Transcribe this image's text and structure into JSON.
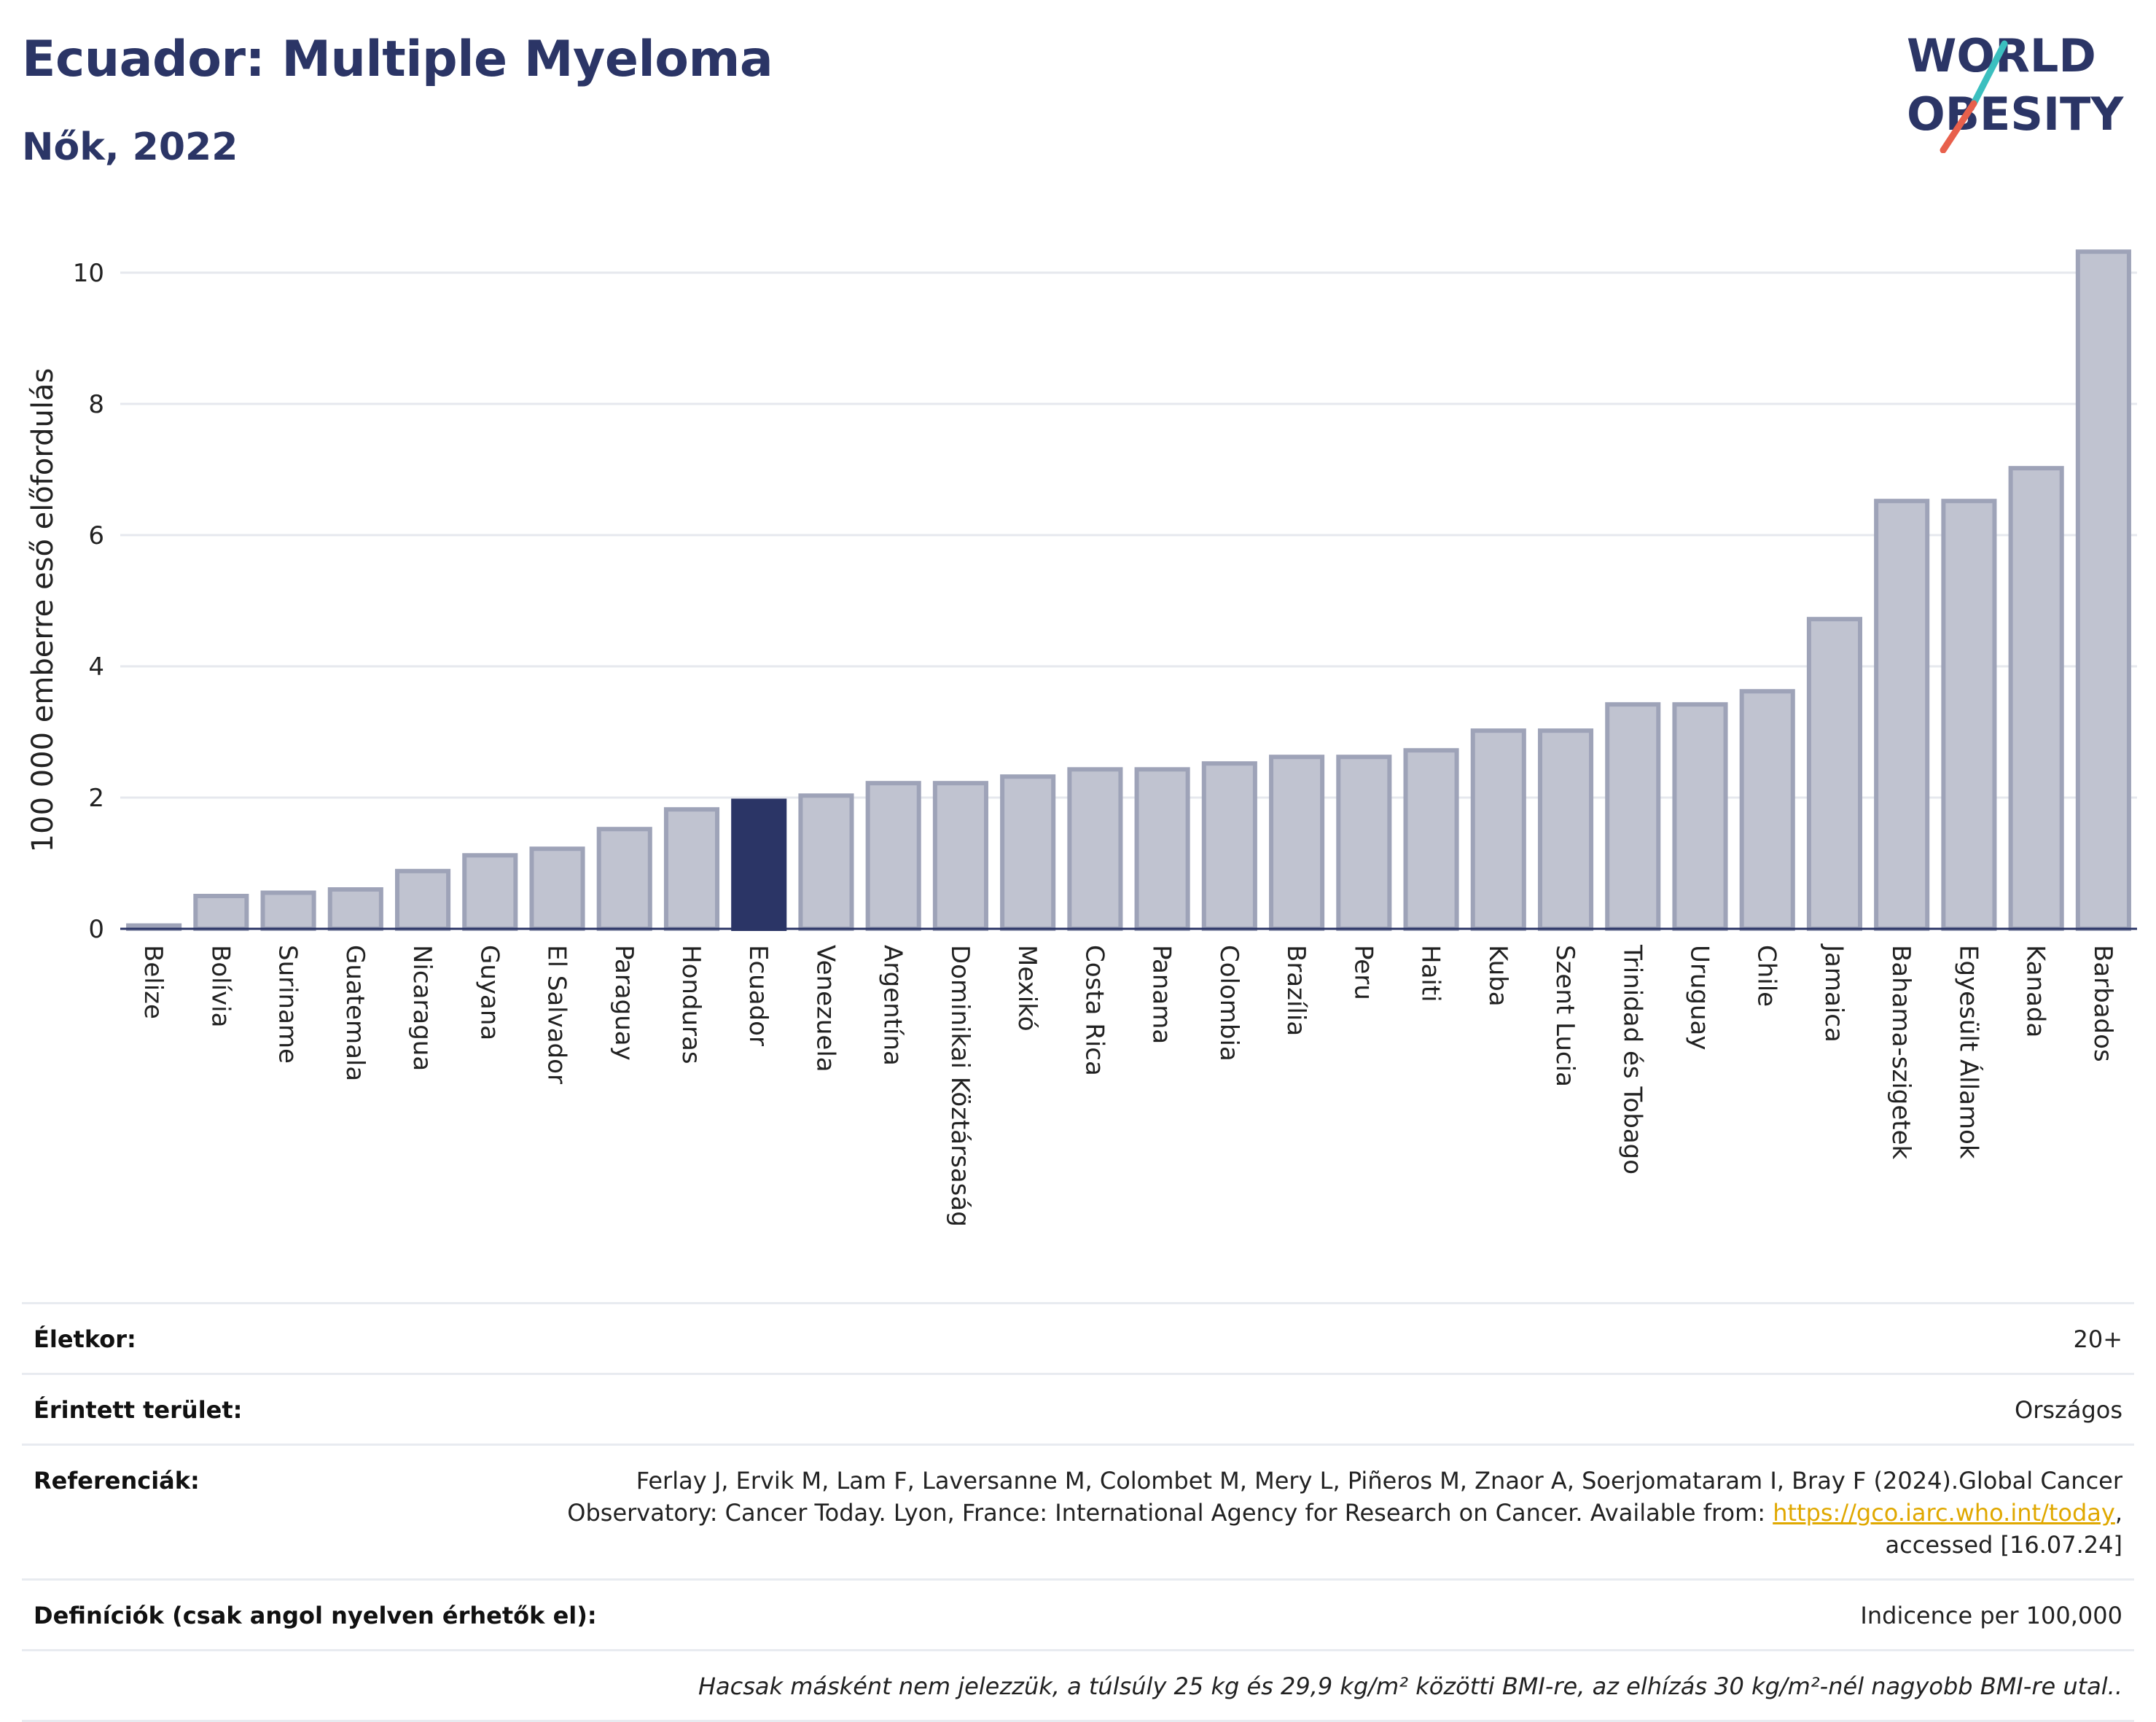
{
  "header": {
    "title": "Ecuador: Multiple Myeloma",
    "subtitle": "Nők, 2022"
  },
  "logo": {
    "line1": "WORLD",
    "line2": "OBESITY",
    "accent_colors": [
      "#3bbfbf",
      "#e8604c"
    ],
    "text_color": "#2b3566"
  },
  "colors": {
    "bar": "#c0c3d0",
    "bar_border": "#9ea3b8",
    "highlight": "#2b3566",
    "grid": "#e6e8ee"
  },
  "chart_data": {
    "type": "bar",
    "title": "Ecuador: Multiple Myeloma",
    "subtitle": "Nők, 2022",
    "ylabel": "100 000 emberre eső előfordulás",
    "xlabel": "",
    "ylim": [
      0,
      10.6
    ],
    "yticks": [
      0,
      2,
      4,
      6,
      8,
      10
    ],
    "grid": true,
    "highlight": "Ecuador",
    "categories": [
      "Belize",
      "Bolívia",
      "Suriname",
      "Guatemala",
      "Nicaragua",
      "Guyana",
      "El Salvador",
      "Paraguay",
      "Honduras",
      "Ecuador",
      "Venezuela",
      "Argentína",
      "Dominikai Köztársaság",
      "Mexikó",
      "Costa Rica",
      "Panama",
      "Colombia",
      "Brazília",
      "Peru",
      "Haiti",
      "Kuba",
      "Szent Lucia",
      "Trinidad és Tobago",
      "Uruguay",
      "Chile",
      "Jamaica",
      "Bahama-szigetek",
      "Egyesült Államok",
      "Kanada",
      "Barbados"
    ],
    "values": [
      0.05,
      0.5,
      0.55,
      0.6,
      0.88,
      1.12,
      1.22,
      1.52,
      1.82,
      1.95,
      2.03,
      2.22,
      2.22,
      2.32,
      2.43,
      2.43,
      2.52,
      2.62,
      2.62,
      2.72,
      3.02,
      3.02,
      3.42,
      3.42,
      3.62,
      4.72,
      6.52,
      6.52,
      7.02,
      10.32
    ]
  },
  "meta": {
    "age_label": "Életkor:",
    "age_value": "20+",
    "area_label": "Érintett terület:",
    "area_value": "Országos",
    "ref_label": "Referenciák:",
    "ref_text_1": "Ferlay J, Ervik M, Lam F, Laversanne M, Colombet M, Mery L, Piñeros M, Znaor A, Soerjomataram I, Bray F (2024).Global Cancer Observatory: Cancer Today. Lyon, France: International Agency for Research on Cancer. Available from: ",
    "ref_link": "https://gco.iarc.who.int/today",
    "ref_text_2": ", accessed [16.07.24]",
    "def_label": "Definíciók (csak angol nyelven érhetők el):",
    "def_value": "Indicence per 100,000",
    "note": "Hacsak másként nem jelezzük, a túlsúly 25 kg és 29,9 kg/m² közötti BMI-re, az elhízás 30 kg/m²-nél nagyobb BMI-re utal.."
  }
}
